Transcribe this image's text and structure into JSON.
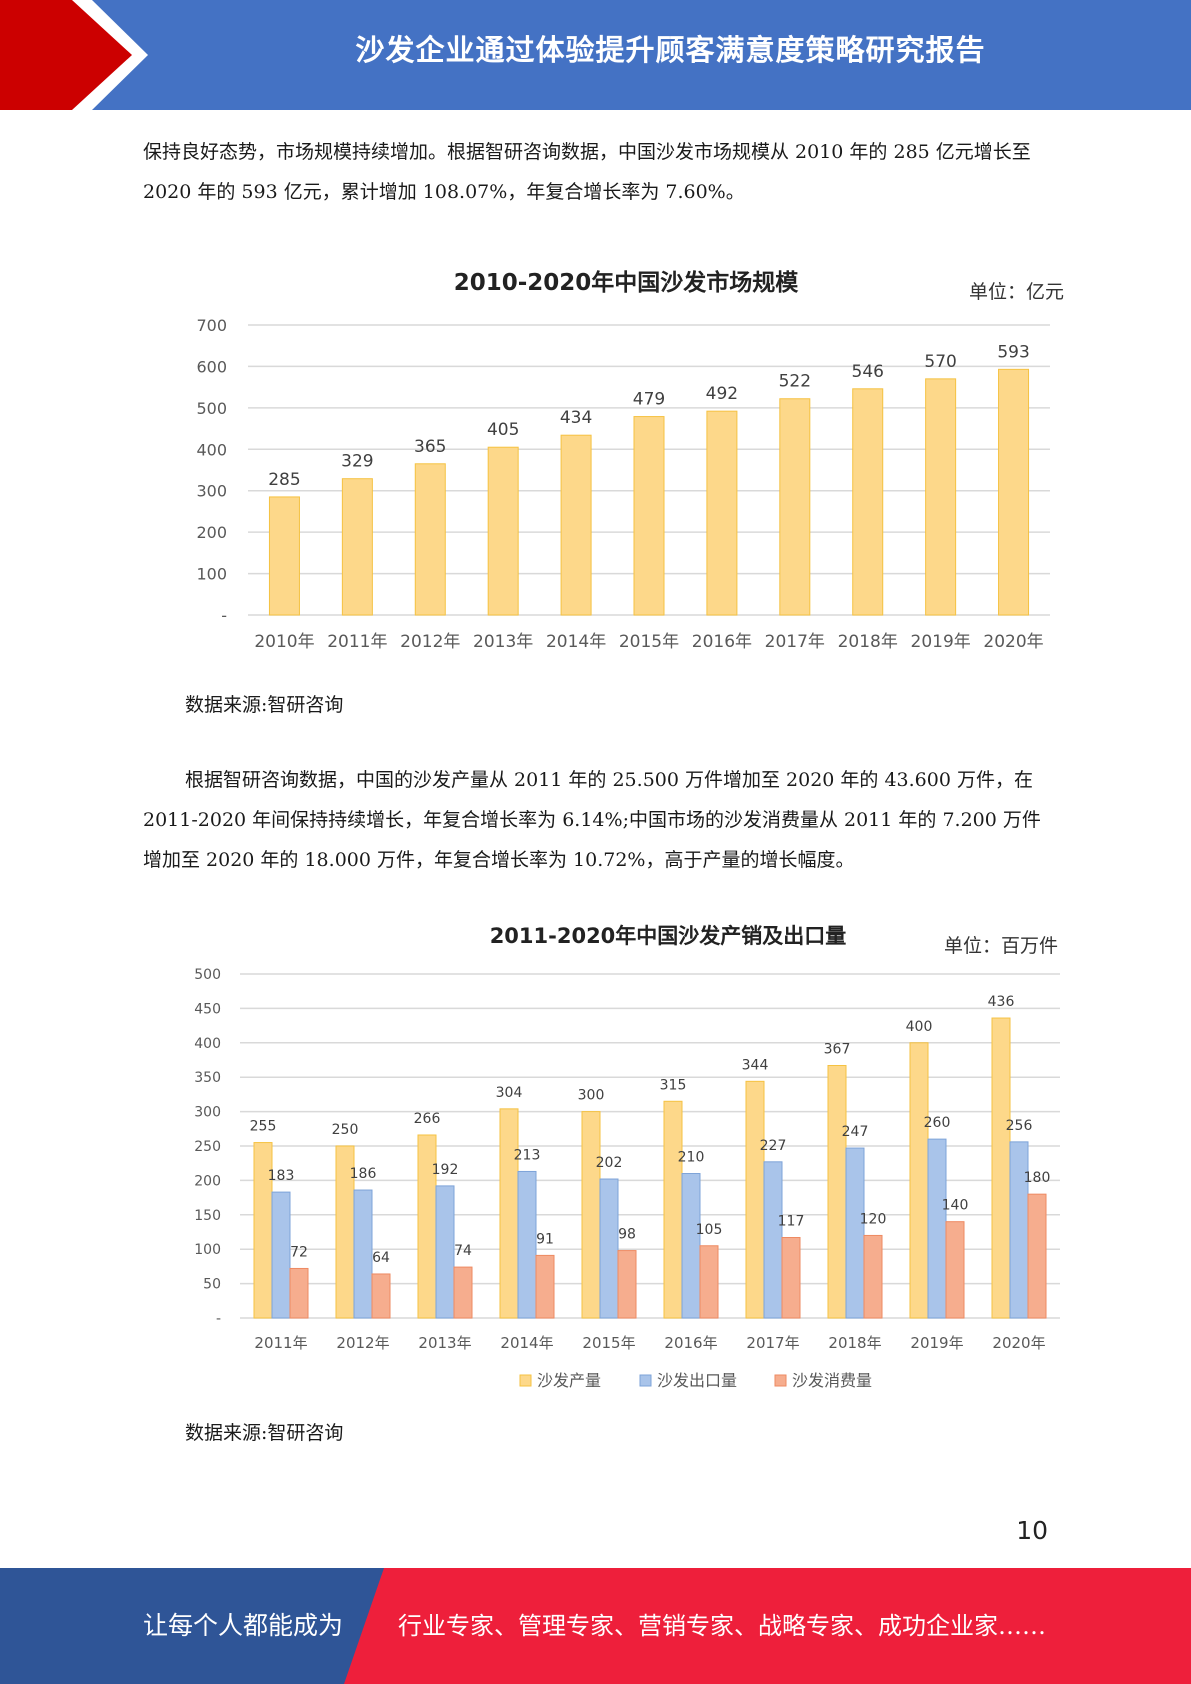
{
  "header": {
    "title": "沙发企业通过体验提升顾客满意度策略研究报告"
  },
  "paragraphs": [
    "保持良好态势，市场规模持续增加。根据智研咨询数据，中国沙发市场规模从 2010 年的 285 亿元增长至 2020 年的 593 亿元，累计增加 108.07%，年复合增长率为 7.60%。",
    "根据智研咨询数据，中国的沙发产量从 2011 年的 25.500 万件增加至 2020 年的 43.600 万件，在 2011-2020 年间保持持续增长，年复合增长率为 6.14%;中国市场的沙发消费量从 2011 年的 7.200 万件增加至 2020 年的 18.000 万件，年复合增长率为 10.72%，高于产量的增长幅度。"
  ],
  "source_note": "数据来源:智研咨询",
  "chart_data": [
    {
      "type": "bar",
      "title": "2010-2020年中国沙发市场规模",
      "unit": "单位：亿元",
      "categories": [
        "2010年",
        "2011年",
        "2012年",
        "2013年",
        "2014年",
        "2015年",
        "2016年",
        "2017年",
        "2018年",
        "2019年",
        "2020年"
      ],
      "values": [
        285,
        329,
        365,
        405,
        434,
        479,
        492,
        522,
        546,
        570,
        593
      ],
      "ylim": [
        0,
        700
      ],
      "yticks": [
        0,
        100,
        200,
        300,
        400,
        500,
        600,
        700
      ],
      "ytick_labels": [
        "-",
        "100",
        "200",
        "300",
        "400",
        "500",
        "600",
        "700"
      ],
      "grid": true,
      "colors": {
        "fill": "#fdd88a",
        "stroke": "#f5c242"
      }
    },
    {
      "type": "bar",
      "title": "2011-2020年中国沙发产销及出口量",
      "unit": "单位：百万件",
      "categories": [
        "2011年",
        "2012年",
        "2013年",
        "2014年",
        "2015年",
        "2016年",
        "2017年",
        "2018年",
        "2019年",
        "2020年"
      ],
      "series": [
        {
          "name": "沙发产量",
          "values": [
            255,
            250,
            266,
            304,
            300,
            315,
            344,
            367,
            400,
            436
          ],
          "color": "#fdd88a",
          "stroke": "#f5c242"
        },
        {
          "name": "沙发出口量",
          "values": [
            183,
            186,
            192,
            213,
            202,
            210,
            227,
            247,
            260,
            256
          ],
          "color": "#a9c4ea",
          "stroke": "#7da3d8"
        },
        {
          "name": "沙发消费量",
          "values": [
            72,
            64,
            74,
            91,
            98,
            105,
            117,
            120,
            140,
            180
          ],
          "color": "#f6ad8e",
          "stroke": "#ee8a62"
        }
      ],
      "ylim": [
        0,
        500
      ],
      "yticks": [
        0,
        50,
        100,
        150,
        200,
        250,
        300,
        350,
        400,
        450,
        500
      ],
      "ytick_labels": [
        "-",
        "50",
        "100",
        "150",
        "200",
        "250",
        "300",
        "350",
        "400",
        "450",
        "500"
      ],
      "grid": true,
      "legend": "bottom"
    }
  ],
  "page_number": "10",
  "footer": {
    "left_text": "让每个人都能成为",
    "right_text": "行业专家、管理专家、营销专家、战略专家、成功企业家……",
    "colors": {
      "blue": "#2f5597",
      "red": "#ee1f3b"
    }
  }
}
